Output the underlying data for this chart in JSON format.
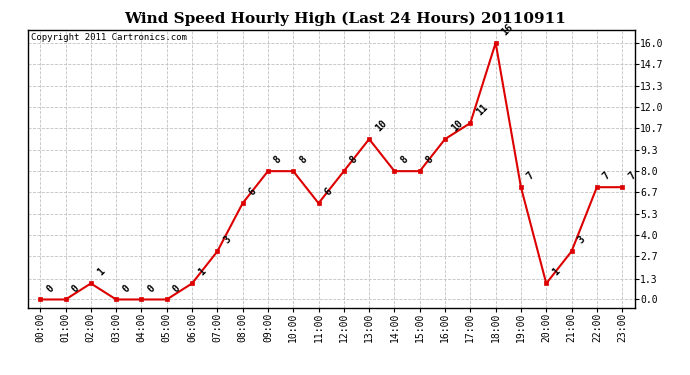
{
  "title": "Wind Speed Hourly High (Last 24 Hours) 20110911",
  "copyright": "Copyright 2011 Cartronics.com",
  "hours": [
    "00:00",
    "01:00",
    "02:00",
    "03:00",
    "04:00",
    "05:00",
    "06:00",
    "07:00",
    "08:00",
    "09:00",
    "10:00",
    "11:00",
    "12:00",
    "13:00",
    "14:00",
    "15:00",
    "16:00",
    "17:00",
    "18:00",
    "19:00",
    "20:00",
    "21:00",
    "22:00",
    "23:00"
  ],
  "values": [
    0,
    0,
    1,
    0,
    0,
    0,
    1,
    3,
    6,
    8,
    8,
    6,
    8,
    10,
    8,
    8,
    10,
    11,
    16,
    7,
    1,
    3,
    7,
    7
  ],
  "yticks": [
    0.0,
    1.3,
    2.7,
    4.0,
    5.3,
    6.7,
    8.0,
    9.3,
    10.7,
    12.0,
    13.3,
    14.7,
    16.0
  ],
  "line_color": "#dd0000",
  "marker_color": "#dd0000",
  "bg_color": "#ffffff",
  "grid_color": "#bbbbbb",
  "title_fontsize": 11,
  "label_fontsize": 7,
  "annotation_fontsize": 7,
  "copyright_fontsize": 6.5
}
